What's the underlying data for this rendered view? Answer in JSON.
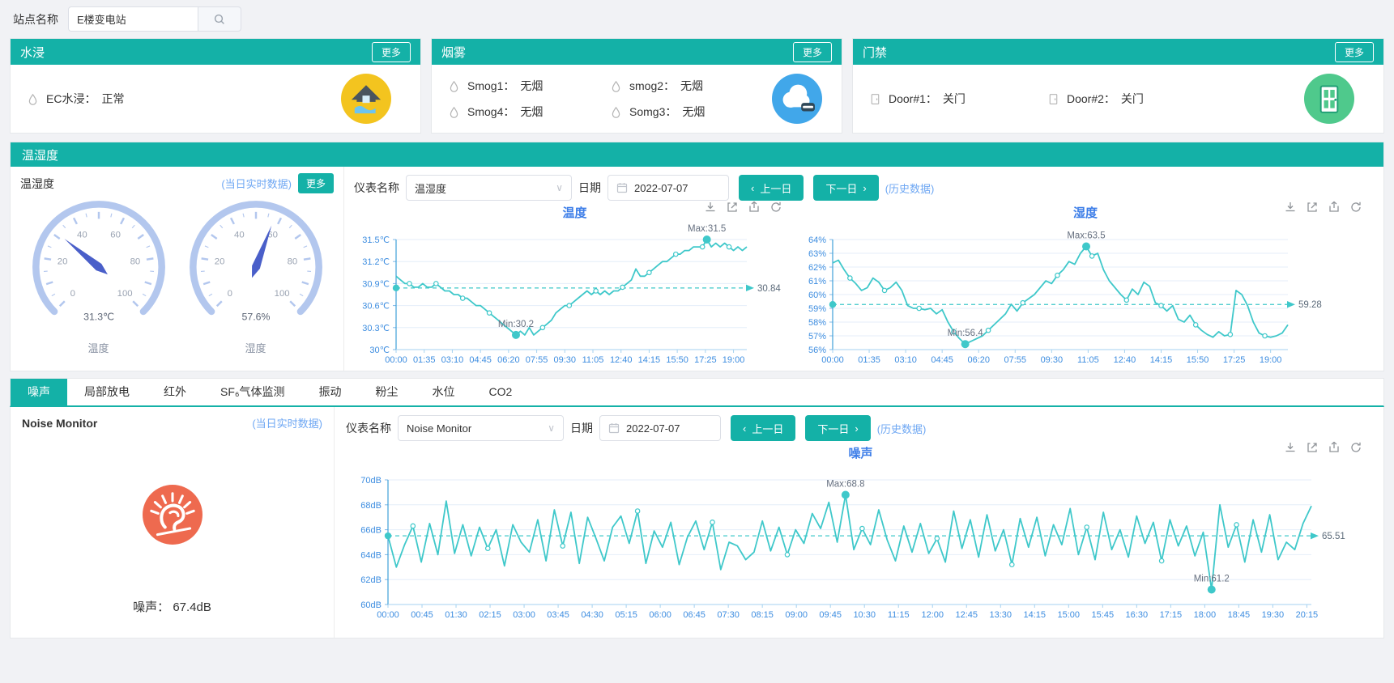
{
  "topbar": {
    "site_label": "站点名称",
    "site_value": "E楼变电站"
  },
  "separator": "：",
  "colors": {
    "accent": "#14b1a7",
    "link_blue": "#6ea7f3",
    "series": "#3fc8ca",
    "chart_title_blue": "#3d7ee8",
    "axis_label_blue": "#3d8de0",
    "gauge_ring": "#b3c7ee",
    "gauge_needle": "#4a5fc9",
    "water_icon_bg": "#f3c41f",
    "smoke_icon_bg": "#41a7ea",
    "door_icon_bg": "#4fc98c",
    "noise_icon_bg": "#ee6a4f"
  },
  "icons": {
    "search-icon": "magnifier",
    "droplet-icon": "water-drop outline",
    "door-small-icon": "door outline",
    "water-home-icon": "house with flood water",
    "smoke-cloud-icon": "smoke cloud with detector",
    "door-big-icon": "door",
    "noise-ear-icon": "ear with noise burst",
    "calendar-icon": "calendar",
    "chevron-down-icon": "∨",
    "chevron-left-icon": "‹",
    "chevron-right-icon": "›",
    "toolbox": [
      "download-icon",
      "zoom-box-icon",
      "zoom-reset-icon",
      "refresh-icon"
    ]
  },
  "cards": {
    "water": {
      "title": "水浸",
      "more": "更多",
      "items": [
        {
          "name": "EC水浸",
          "value": "正常"
        }
      ]
    },
    "smoke": {
      "title": "烟雾",
      "more": "更多",
      "items": [
        {
          "name": "Smog1",
          "value": "无烟"
        },
        {
          "name": "smog2",
          "value": "无烟"
        },
        {
          "name": "Smog4",
          "value": "无烟"
        },
        {
          "name": "Somg3",
          "value": "无烟"
        }
      ]
    },
    "door": {
      "title": "门禁",
      "more": "更多",
      "items": [
        {
          "name": "Door#1",
          "value": "关门"
        },
        {
          "name": "Door#2",
          "value": "关门"
        }
      ]
    }
  },
  "thp": {
    "header": "温湿度",
    "left": {
      "title": "温湿度",
      "realtime": "(当日实时数据)",
      "more": "更多",
      "gauge_ticks": [
        0,
        20,
        40,
        60,
        80,
        100
      ],
      "gauges": [
        {
          "value": 31.3,
          "display": "31.3℃",
          "label": "温度"
        },
        {
          "value": 57.6,
          "display": "57.6%",
          "label": "湿度"
        }
      ]
    },
    "controls": {
      "meter_label": "仪表名称",
      "meter_value": "温湿度",
      "date_label": "日期",
      "date_value": "2022-07-07",
      "prev": "上一日",
      "next": "下一日",
      "history": "(历史数据)"
    }
  },
  "tabs": {
    "active": 0,
    "items": [
      "噪声",
      "局部放电",
      "红外",
      "SF₆气体监测",
      "振动",
      "粉尘",
      "水位",
      "CO2"
    ]
  },
  "noise": {
    "left": {
      "title": "Noise Monitor",
      "realtime": "(当日实时数据)",
      "reading_label": "噪声",
      "reading_value": "67.4dB"
    },
    "controls": {
      "meter_label": "仪表名称",
      "meter_value": "Noise Monitor",
      "date_label": "日期",
      "date_value": "2022-07-07",
      "prev": "上一日",
      "next": "下一日",
      "history": "(历史数据)"
    }
  },
  "chart_data": [
    {
      "type": "line",
      "title": "温度",
      "unit": "℃",
      "ylim": [
        30,
        31.5
      ],
      "ystep": 0.3,
      "x_tick_interval_min": 95,
      "x_total_min": 1185,
      "x_ticks": [
        "00:00",
        "01:35",
        "03:10",
        "04:45",
        "06:20",
        "07:55",
        "09:30",
        "11:05",
        "12:40",
        "14:15",
        "15:50",
        "17:25",
        "19:00"
      ],
      "avg": 30.84,
      "avg_label": "30.84",
      "max_label": "Max:31.5",
      "min_label": "Min:30.2",
      "values": [
        31.0,
        30.95,
        30.9,
        30.9,
        30.85,
        30.85,
        30.9,
        30.85,
        30.85,
        30.9,
        30.85,
        30.8,
        30.8,
        30.75,
        30.75,
        30.7,
        30.7,
        30.65,
        30.6,
        30.6,
        30.55,
        30.5,
        30.45,
        30.4,
        30.35,
        30.3,
        30.25,
        30.2,
        30.25,
        30.2,
        30.3,
        30.2,
        30.25,
        30.3,
        30.35,
        30.4,
        30.5,
        30.55,
        30.6,
        30.6,
        30.65,
        30.7,
        30.75,
        30.8,
        30.75,
        30.8,
        30.75,
        30.8,
        30.75,
        30.8,
        30.8,
        30.85,
        30.9,
        30.95,
        31.1,
        31.0,
        31.0,
        31.05,
        31.1,
        31.15,
        31.2,
        31.2,
        31.25,
        31.3,
        31.3,
        31.35,
        31.35,
        31.4,
        31.4,
        31.4,
        31.5,
        31.4,
        31.45,
        31.4,
        31.45,
        31.4,
        31.35,
        31.4,
        31.35,
        31.4
      ]
    },
    {
      "type": "line",
      "title": "湿度",
      "unit": "%",
      "ylim": [
        56,
        64
      ],
      "ystep": 1,
      "x_tick_interval_min": 95,
      "x_total_min": 1185,
      "x_ticks": [
        "00:00",
        "01:35",
        "03:10",
        "04:45",
        "06:20",
        "07:55",
        "09:30",
        "11:05",
        "12:40",
        "14:15",
        "15:50",
        "17:25",
        "19:00"
      ],
      "avg": 59.28,
      "avg_label": "59.28",
      "max_label": "Max:63.5",
      "min_label": "Min:56.4",
      "values": [
        62.3,
        62.5,
        61.8,
        61.2,
        60.8,
        60.3,
        60.5,
        61.2,
        60.9,
        60.3,
        60.5,
        60.9,
        60.3,
        59.2,
        59.0,
        59.0,
        58.9,
        59.0,
        58.6,
        58.9,
        58.0,
        57.3,
        56.8,
        56.4,
        56.6,
        56.8,
        57.0,
        57.4,
        57.8,
        58.2,
        58.6,
        59.3,
        58.8,
        59.4,
        59.7,
        60.0,
        60.5,
        61.0,
        60.8,
        61.4,
        61.8,
        62.4,
        62.2,
        63.0,
        63.5,
        62.8,
        63.0,
        61.8,
        61.0,
        60.5,
        60.0,
        59.6,
        60.4,
        60.0,
        60.9,
        60.6,
        59.4,
        59.2,
        58.8,
        59.2,
        58.2,
        58.0,
        58.5,
        57.8,
        57.4,
        57.1,
        56.9,
        57.3,
        57.0,
        57.1,
        60.3,
        60.0,
        59.2,
        58.0,
        57.2,
        57.0,
        56.9,
        57.0,
        57.2,
        57.8
      ]
    },
    {
      "type": "line",
      "title": "噪声",
      "unit": "dB",
      "ylim": [
        60,
        70
      ],
      "ystep": 2,
      "x_tick_interval_min": 45,
      "x_total_min": 1221,
      "x_ticks": [
        "00:00",
        "00:45",
        "01:30",
        "02:15",
        "03:00",
        "03:45",
        "04:30",
        "05:15",
        "06:00",
        "06:45",
        "07:30",
        "08:15",
        "09:00",
        "09:45",
        "10:30",
        "11:15",
        "12:00",
        "12:45",
        "13:30",
        "14:15",
        "15:00",
        "15:45",
        "16:30",
        "17:15",
        "18:00",
        "18:45",
        "19:30",
        "20:15"
      ],
      "avg": 65.51,
      "avg_label": "65.51",
      "max_label": "Max:68.8",
      "min_label": "Min:61.2",
      "values": [
        65.5,
        63.0,
        64.8,
        66.3,
        63.4,
        66.5,
        64.0,
        68.3,
        64.1,
        66.4,
        63.9,
        66.2,
        64.5,
        66.0,
        63.1,
        66.4,
        65.0,
        64.2,
        66.8,
        63.5,
        67.6,
        64.7,
        67.4,
        63.3,
        67.0,
        65.3,
        63.5,
        66.2,
        67.1,
        64.9,
        67.5,
        63.3,
        65.9,
        64.6,
        66.6,
        63.2,
        65.4,
        66.7,
        64.4,
        66.6,
        62.8,
        65.0,
        64.7,
        63.6,
        64.2,
        66.7,
        64.3,
        66.2,
        64.0,
        66.0,
        64.9,
        67.3,
        66.1,
        68.2,
        65.0,
        68.8,
        64.4,
        66.1,
        64.8,
        67.6,
        65.2,
        63.5,
        66.3,
        64.2,
        66.5,
        64.1,
        65.3,
        63.4,
        67.5,
        64.5,
        66.8,
        63.8,
        67.2,
        64.3,
        66.0,
        63.2,
        66.9,
        64.6,
        67.0,
        63.9,
        66.4,
        64.8,
        67.7,
        64.0,
        66.2,
        63.6,
        67.4,
        64.4,
        66.0,
        63.8,
        67.1,
        64.9,
        66.6,
        63.5,
        66.8,
        64.7,
        66.3,
        63.9,
        65.8,
        61.2,
        68.0,
        64.6,
        66.4,
        63.4,
        66.8,
        64.2,
        67.2,
        63.6,
        65.0,
        64.4,
        66.5,
        67.9
      ]
    }
  ]
}
